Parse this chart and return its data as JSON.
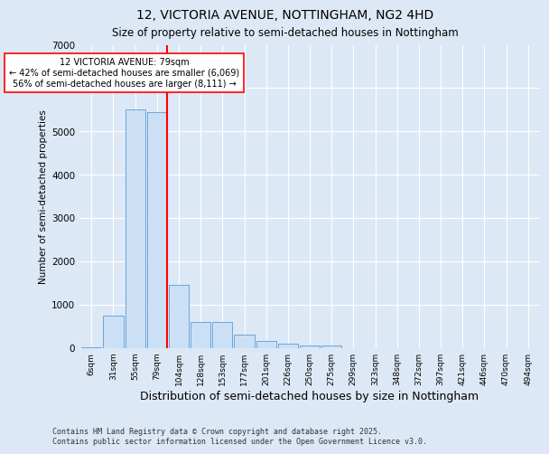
{
  "title": "12, VICTORIA AVENUE, NOTTINGHAM, NG2 4HD",
  "subtitle": "Size of property relative to semi-detached houses in Nottingham",
  "xlabel": "Distribution of semi-detached houses by size in Nottingham",
  "ylabel": "Number of semi-detached properties",
  "categories": [
    "6sqm",
    "31sqm",
    "55sqm",
    "79sqm",
    "104sqm",
    "128sqm",
    "153sqm",
    "177sqm",
    "201sqm",
    "226sqm",
    "250sqm",
    "275sqm",
    "299sqm",
    "323sqm",
    "348sqm",
    "372sqm",
    "397sqm",
    "421sqm",
    "446sqm",
    "470sqm",
    "494sqm"
  ],
  "values": [
    10,
    750,
    5500,
    5450,
    1450,
    600,
    590,
    300,
    160,
    90,
    55,
    50,
    0,
    0,
    0,
    0,
    0,
    0,
    0,
    0,
    0
  ],
  "bar_color": "#cce0f5",
  "bar_edge_color": "#5b9bd5",
  "highlight_index": 3,
  "highlight_color": "#ff0000",
  "annotation_title": "12 VICTORIA AVENUE: 79sqm",
  "annotation_line1": "← 42% of semi-detached houses are smaller (6,069)",
  "annotation_line2": "56% of semi-detached houses are larger (8,111) →",
  "annotation_box_color": "#ffffff",
  "annotation_box_edge": "#ff0000",
  "ylim": [
    0,
    7000
  ],
  "yticks": [
    0,
    1000,
    2000,
    3000,
    4000,
    5000,
    6000,
    7000
  ],
  "background_color": "#dce8f5",
  "footer_line1": "Contains HM Land Registry data © Crown copyright and database right 2025.",
  "footer_line2": "Contains public sector information licensed under the Open Government Licence v3.0.",
  "title_fontsize": 10,
  "subtitle_fontsize": 8.5,
  "xlabel_fontsize": 9,
  "ylabel_fontsize": 7.5
}
